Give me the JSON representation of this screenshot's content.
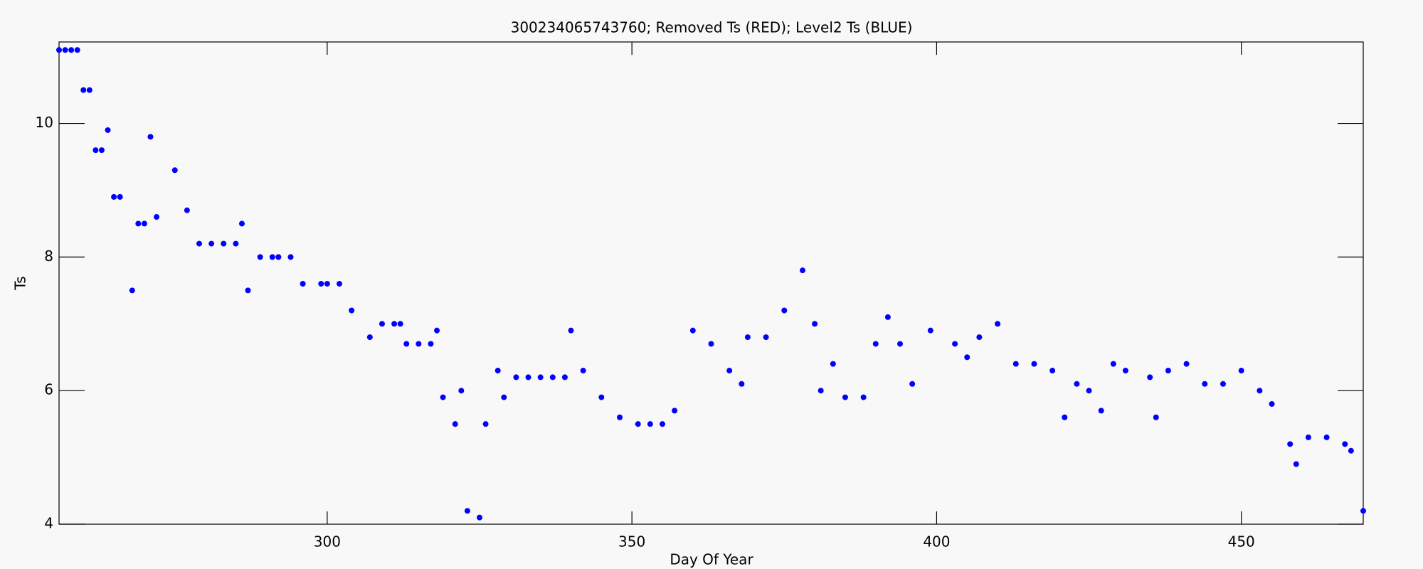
{
  "chart_data": {
    "type": "scatter",
    "title": "300234065743760; Removed Ts (RED); Level2 Ts (BLUE)",
    "x_label": "Day Of Year",
    "y_label": "Ts",
    "xlim": [
      256,
      470
    ],
    "ylim": [
      4,
      11.22
    ],
    "xticks": [
      300,
      350,
      400,
      450
    ],
    "yticks": [
      4,
      6,
      8,
      10
    ],
    "series": [
      {
        "name": "Level2 Ts",
        "color": "#0000ff",
        "x": [
          256,
          257,
          258,
          259,
          260,
          261,
          262,
          263,
          264,
          265,
          266,
          268,
          269,
          270,
          271,
          272,
          275,
          277,
          279,
          281,
          283,
          285,
          286,
          287,
          289,
          291,
          292,
          294,
          296,
          299,
          300,
          302,
          304,
          307,
          309,
          311,
          312,
          313,
          315,
          317,
          318,
          319,
          321,
          322,
          323,
          325,
          326,
          328,
          329,
          331,
          333,
          335,
          337,
          339,
          340,
          342,
          345,
          348,
          351,
          353,
          355,
          357,
          360,
          363,
          366,
          368,
          369,
          372,
          375,
          378,
          380,
          381,
          383,
          385,
          388,
          390,
          392,
          394,
          396,
          399,
          403,
          405,
          407,
          410,
          413,
          416,
          419,
          421,
          423,
          425,
          427,
          429,
          431,
          435,
          436,
          438,
          441,
          444,
          447,
          450,
          453,
          455,
          458,
          459,
          461,
          464,
          467,
          468,
          470
        ],
        "values": [
          11.1,
          11.1,
          11.1,
          11.1,
          10.5,
          10.5,
          9.6,
          9.6,
          9.9,
          8.9,
          8.9,
          7.5,
          8.5,
          8.5,
          9.8,
          8.6,
          9.3,
          8.7,
          8.2,
          8.2,
          8.2,
          8.2,
          8.5,
          7.5,
          8.0,
          8.0,
          8.0,
          8.0,
          7.6,
          7.6,
          7.6,
          7.6,
          7.2,
          6.8,
          7.0,
          7.0,
          7.0,
          6.7,
          6.7,
          6.7,
          6.9,
          5.9,
          5.5,
          6.0,
          4.2,
          4.1,
          5.5,
          6.3,
          5.9,
          6.2,
          6.2,
          6.2,
          6.2,
          6.2,
          6.9,
          6.3,
          5.9,
          5.6,
          5.5,
          5.5,
          5.5,
          5.7,
          6.9,
          6.7,
          6.3,
          6.1,
          6.8,
          6.8,
          7.2,
          7.8,
          7.0,
          6.0,
          6.4,
          5.9,
          5.9,
          6.7,
          7.1,
          6.7,
          6.1,
          6.9,
          6.7,
          6.5,
          6.8,
          7.0,
          6.4,
          6.4,
          6.3,
          5.6,
          6.1,
          6.0,
          5.7,
          6.4,
          6.3,
          6.2,
          5.6,
          6.3,
          6.4,
          6.1,
          6.1,
          6.3,
          6.0,
          5.8,
          5.2,
          4.9,
          5.3,
          5.3,
          5.2,
          5.1,
          4.2
        ]
      }
    ]
  }
}
